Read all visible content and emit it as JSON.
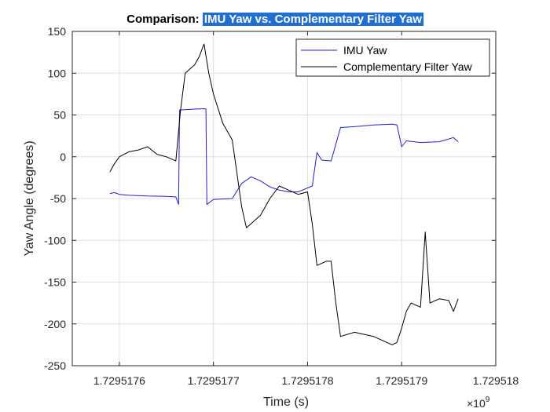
{
  "chart_data": {
    "type": "line",
    "title_prefix": "Comparison:",
    "title_highlight": "IMU Yaw vs. Complementary Filter Yaw",
    "xlabel": "Time (s)",
    "ylabel": "Yaw Angle (degrees)",
    "x_exponent_label": "×10",
    "x_exponent_power": "9",
    "xlim": [
      1.72951755,
      1.729518
    ],
    "ylim": [
      -250,
      150
    ],
    "x_ticks": [
      1.7295176,
      1.7295177,
      1.7295178,
      1.7295179,
      1.729518
    ],
    "x_tick_labels": [
      "1.7295176",
      "1.7295177",
      "1.7295178",
      "1.7295179",
      "1.729518"
    ],
    "y_ticks": [
      -250,
      -200,
      -150,
      -100,
      -50,
      0,
      50,
      100,
      150
    ],
    "y_tick_labels": [
      "-250",
      "-200",
      "-150",
      "-100",
      "-50",
      "0",
      "50",
      "100",
      "150"
    ],
    "grid": true,
    "legend_position": "top-right",
    "series": [
      {
        "name": "IMU Yaw",
        "color": "#1f1fd6",
        "points": [
          [
            1.72951759,
            -44
          ],
          [
            1.729517595,
            -43
          ],
          [
            1.7295176,
            -45
          ],
          [
            1.72951761,
            -46
          ],
          [
            1.72951763,
            -47
          ],
          [
            1.72951765,
            -47.5
          ],
          [
            1.72951766,
            -48
          ],
          [
            1.729517663,
            -57
          ],
          [
            1.729517664,
            56
          ],
          [
            1.72951768,
            57
          ],
          [
            1.72951769,
            57.5
          ],
          [
            1.729517692,
            57
          ],
          [
            1.729517693,
            -57
          ],
          [
            1.7295177,
            -51
          ],
          [
            1.72951772,
            -50
          ],
          [
            1.72951773,
            -32
          ],
          [
            1.72951774,
            -24
          ],
          [
            1.72951775,
            -29
          ],
          [
            1.72951776,
            -36
          ],
          [
            1.72951777,
            -40
          ],
          [
            1.72951778,
            -42
          ],
          [
            1.72951779,
            -42
          ],
          [
            1.729517805,
            -35
          ],
          [
            1.72951781,
            5
          ],
          [
            1.729517815,
            -4
          ],
          [
            1.729517825,
            -5
          ],
          [
            1.72951783,
            15
          ],
          [
            1.729517835,
            35
          ],
          [
            1.72951785,
            36
          ],
          [
            1.72951787,
            38
          ],
          [
            1.72951789,
            39
          ],
          [
            1.729517895,
            38
          ],
          [
            1.7295179,
            12
          ],
          [
            1.729517905,
            19
          ],
          [
            1.72951792,
            17
          ],
          [
            1.72951794,
            18
          ],
          [
            1.729517955,
            23
          ],
          [
            1.72951796,
            18
          ]
        ]
      },
      {
        "name": "Complementary Filter Yaw",
        "color": "#000000",
        "points": [
          [
            1.72951759,
            -18
          ],
          [
            1.729517595,
            -8
          ],
          [
            1.7295176,
            0
          ],
          [
            1.72951761,
            6
          ],
          [
            1.72951762,
            8
          ],
          [
            1.72951763,
            12
          ],
          [
            1.72951764,
            3
          ],
          [
            1.72951765,
            0
          ],
          [
            1.72951766,
            -5
          ],
          [
            1.729517665,
            55
          ],
          [
            1.72951767,
            100
          ],
          [
            1.72951768,
            110
          ],
          [
            1.729517685,
            120
          ],
          [
            1.72951769,
            135
          ],
          [
            1.729517695,
            100
          ],
          [
            1.7295177,
            75
          ],
          [
            1.72951771,
            40
          ],
          [
            1.72951772,
            20
          ],
          [
            1.729517725,
            -20
          ],
          [
            1.72951773,
            -60
          ],
          [
            1.729517735,
            -85
          ],
          [
            1.72951774,
            -80
          ],
          [
            1.72951775,
            -70
          ],
          [
            1.72951776,
            -50
          ],
          [
            1.72951777,
            -35
          ],
          [
            1.72951778,
            -40
          ],
          [
            1.72951779,
            -45
          ],
          [
            1.7295178,
            -42
          ],
          [
            1.729517805,
            -80
          ],
          [
            1.72951781,
            -130
          ],
          [
            1.72951782,
            -125
          ],
          [
            1.729517825,
            -125
          ],
          [
            1.72951783,
            -175
          ],
          [
            1.729517835,
            -215
          ],
          [
            1.72951785,
            -210
          ],
          [
            1.72951787,
            -215
          ],
          [
            1.72951789,
            -225
          ],
          [
            1.729517895,
            -222
          ],
          [
            1.7295179,
            -205
          ],
          [
            1.729517905,
            -185
          ],
          [
            1.72951791,
            -175
          ],
          [
            1.72951792,
            -180
          ],
          [
            1.729517925,
            -90
          ],
          [
            1.72951793,
            -175
          ],
          [
            1.72951794,
            -170
          ],
          [
            1.72951795,
            -172
          ],
          [
            1.729517955,
            -185
          ],
          [
            1.72951796,
            -170
          ]
        ]
      }
    ]
  }
}
